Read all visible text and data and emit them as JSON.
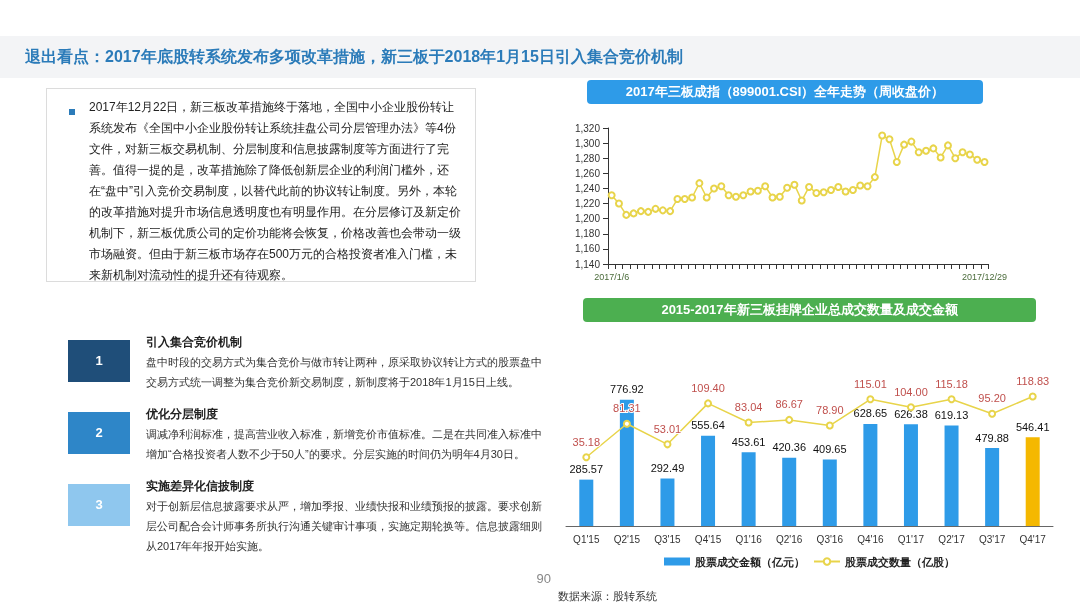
{
  "chart_data": [
    {
      "type": "other",
      "title": "退出看点：2017年底股转系统发布多项改革措施，新三板于2018年1月15日引入集合竞价机制"
    },
    {
      "type": "other",
      "annotations": [
        "2017年12月22日，新三板改革措施终于落地，全国中小企业股份转让系统发布《全国中小企业股份转让系统挂盘公司分层管理办法》等4份文件，对新三板交易机制、分层制度和信息披露制度等方面进行了完善。值得一提的是，改革措施除了降低创新层企业的利润门槛外，还在“盘中”引入竞价交易制度，以替代此前的协议转让制度。另外，本轮的改革措施对提升市场信息透明度也有明显作用。在分层修订及新定价机制下，新三板优质公司的定价功能将会恢复，价格改善也会带动一级市场融资。但由于新三板市场存在500万元的合格投资者准入门槛，未来新机制对流动性的提升还有待观察。"
      ]
    },
    {
      "type": "line",
      "title": "2017年三板成指（899001.CSI）全年走势（周收盘价）",
      "color": "#e8d44a",
      "marker": "circle",
      "grid": false,
      "categories": [
        "2017/1/6",
        null,
        null,
        null,
        null,
        null,
        null,
        null,
        null,
        null,
        null,
        null,
        null,
        null,
        null,
        null,
        null,
        null,
        null,
        null,
        null,
        null,
        null,
        null,
        null,
        null,
        null,
        null,
        null,
        null,
        null,
        null,
        null,
        null,
        null,
        null,
        null,
        null,
        null,
        null,
        null,
        null,
        null,
        null,
        null,
        null,
        null,
        null,
        null,
        null,
        null,
        "2017/12/29"
      ],
      "values": [
        1231,
        1220,
        1205,
        1207,
        1210,
        1209,
        1213,
        1211,
        1210,
        1226,
        1226,
        1228,
        1247,
        1228,
        1240,
        1243,
        1231,
        1229,
        1231,
        1236,
        1237,
        1243,
        1228,
        1229,
        1241,
        1245,
        1224,
        1242,
        1234,
        1235,
        1238,
        1242,
        1236,
        1238,
        1244,
        1243,
        1255,
        1310,
        1305,
        1275,
        1298,
        1302,
        1288,
        1290,
        1293,
        1281,
        1297,
        1280,
        1288,
        1285,
        1278,
        1275
      ],
      "ylim": [
        1140,
        1320
      ],
      "yticks": [
        {
          "value": 1140,
          "label": "1,140"
        },
        {
          "value": 1160,
          "label": "1,160"
        },
        {
          "value": 1180,
          "label": "1,180"
        },
        {
          "value": 1200,
          "label": "1,200"
        },
        {
          "value": 1220,
          "label": "1,220"
        },
        {
          "value": 1240,
          "label": "1,240"
        },
        {
          "value": 1260,
          "label": "1,260"
        },
        {
          "value": 1280,
          "label": "1,280"
        },
        {
          "value": 1300,
          "label": "1,300"
        },
        {
          "value": 1320,
          "label": "1,320"
        }
      ]
    },
    {
      "type": "other",
      "annotations": [
        "1",
        "引入集合竞价机制",
        "盘中时段的交易方式为集合竞价与做市转让两种，原采取协议转让方式的股票盘中交易方式统一调整为集合竞价新交易制度，新制度将于2018年1月15日上线。",
        "2",
        "优化分层制度",
        "调减净利润标准，提高营业收入标准，新增竞价市值标准。二是在共同准入标准中增加“合格投资者人数不少于50人”的要求。分层实施的时间仍为明年4月30日。",
        "3",
        "实施差异化信披制度",
        "对于创新层信息披露要求从严，增加季报、业绩快报和业绩预报的披露。要求创新层公司配合会计师事务所执行沟通关键审计事项，实施定期轮换等。信息披露细则从2017年年报开始实施。",
        "90"
      ]
    },
    {
      "type": "bar",
      "title": "2015-2017年新三板挂牌企业总成交数量及成交金额",
      "legend": "bottom",
      "grid": false,
      "categories": [
        "Q1'15",
        "Q2'15",
        "Q3'15",
        "Q4'15",
        "Q1'16",
        "Q2'16",
        "Q3'16",
        "Q4'16",
        "Q1'17",
        "Q2'17",
        "Q3'17",
        "Q4'17"
      ],
      "series": [
        {
          "name": "股票成交金额（亿元）",
          "color": "#2e9be8",
          "colors": [
            "#2e9be8",
            "#2e9be8",
            "#2e9be8",
            "#2e9be8",
            "#2e9be8",
            "#2e9be8",
            "#2e9be8",
            "#2e9be8",
            "#2e9be8",
            "#2e9be8",
            "#2e9be8",
            "#f5b800"
          ],
          "values": [
            285.57,
            776.92,
            292.49,
            555.64,
            453.61,
            420.36,
            409.65,
            628.65,
            626.38,
            619.13,
            479.88,
            546.41
          ],
          "value_labels": [
            "285.57",
            "776.92",
            "292.49",
            "555.64",
            "453.61",
            "420.36",
            "409.65",
            "628.65",
            "626.38",
            "619.13",
            "479.88",
            "546.41"
          ]
        },
        {
          "name": "股票成交数量（亿股）",
          "type": "line",
          "axis": "y2",
          "color": "#e8d44a",
          "marker": "circle",
          "values": [
            35.18,
            81.31,
            53.01,
            109.4,
            83.04,
            86.67,
            78.9,
            115.01,
            104.0,
            115.18,
            95.2,
            118.83
          ],
          "value_labels": [
            "35.18",
            "81.31",
            "53.01",
            "109.40",
            "83.04",
            "86.67",
            "78.90",
            "115.01",
            "104.00",
            "115.18",
            "95.20",
            "118.83"
          ]
        }
      ],
      "annotations": [
        "数据来源：股转系统"
      ]
    }
  ]
}
